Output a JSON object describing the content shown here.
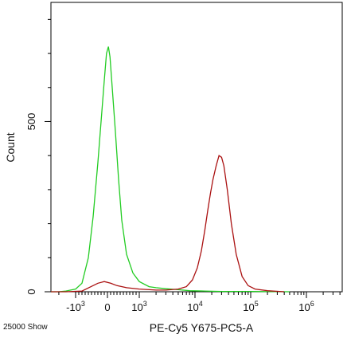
{
  "chart_data": {
    "type": "line",
    "title": "",
    "xlabel": "PE-Cy5 Y675-PC5-A",
    "ylabel": "Count",
    "x_scale": "biexponential",
    "xlim": [
      -3000,
      10000000
    ],
    "ylim": [
      0,
      850
    ],
    "grid": false,
    "x_ticks": [
      {
        "value": -1000,
        "label": "-10",
        "exp": "3"
      },
      {
        "value": 0,
        "label": "0",
        "exp": ""
      },
      {
        "value": 1000,
        "label": "10",
        "exp": "3"
      },
      {
        "value": 10000,
        "label": "10",
        "exp": "4"
      },
      {
        "value": 100000,
        "label": "10",
        "exp": "5"
      },
      {
        "value": 1000000,
        "label": "10",
        "exp": "6"
      }
    ],
    "y_ticks": [
      {
        "value": 0,
        "label": "0"
      },
      {
        "value": 500,
        "label": "500"
      }
    ],
    "annotation": "25000 Show",
    "colors": {
      "green": "#22cc22",
      "red": "#aa1111"
    },
    "series": [
      {
        "color": "#22cc22",
        "points": [
          [
            -3000,
            0
          ],
          [
            -2000,
            0
          ],
          [
            -1500,
            2
          ],
          [
            -1000,
            8
          ],
          [
            -800,
            25
          ],
          [
            -600,
            100
          ],
          [
            -450,
            220
          ],
          [
            -300,
            380
          ],
          [
            -200,
            500
          ],
          [
            -100,
            620
          ],
          [
            -30,
            700
          ],
          [
            30,
            720
          ],
          [
            80,
            690
          ],
          [
            150,
            600
          ],
          [
            250,
            470
          ],
          [
            350,
            330
          ],
          [
            450,
            210
          ],
          [
            600,
            110
          ],
          [
            800,
            55
          ],
          [
            1000,
            30
          ],
          [
            1500,
            15
          ],
          [
            2000,
            12
          ],
          [
            3000,
            9
          ],
          [
            5000,
            6
          ],
          [
            8000,
            3
          ],
          [
            15000,
            2
          ],
          [
            30000,
            1
          ],
          [
            100000,
            1
          ],
          [
            500000,
            0
          ]
        ]
      },
      {
        "color": "#aa1111",
        "points": [
          [
            -3000,
            0
          ],
          [
            -1500,
            0
          ],
          [
            -800,
            2
          ],
          [
            -300,
            25
          ],
          [
            -100,
            30
          ],
          [
            100,
            25
          ],
          [
            300,
            18
          ],
          [
            600,
            12
          ],
          [
            1000,
            8
          ],
          [
            2000,
            5
          ],
          [
            3000,
            5
          ],
          [
            5000,
            8
          ],
          [
            7000,
            15
          ],
          [
            9000,
            35
          ],
          [
            11000,
            70
          ],
          [
            13000,
            120
          ],
          [
            15000,
            180
          ],
          [
            17000,
            240
          ],
          [
            19000,
            290
          ],
          [
            21000,
            330
          ],
          [
            24000,
            370
          ],
          [
            27000,
            400
          ],
          [
            30000,
            395
          ],
          [
            33000,
            370
          ],
          [
            38000,
            300
          ],
          [
            45000,
            200
          ],
          [
            55000,
            110
          ],
          [
            70000,
            45
          ],
          [
            90000,
            18
          ],
          [
            120000,
            8
          ],
          [
            200000,
            3
          ],
          [
            400000,
            0
          ]
        ]
      }
    ]
  }
}
